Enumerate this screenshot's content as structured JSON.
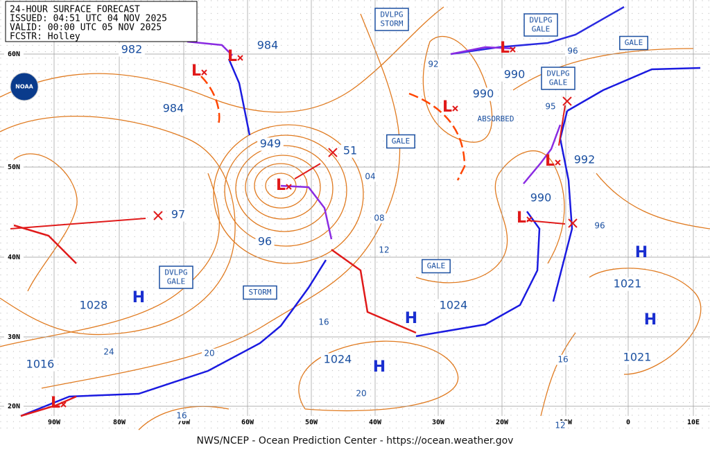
{
  "header": {
    "title": "24-HOUR SURFACE FORECAST",
    "issued": "ISSUED: 04:51 UTC 04 NOV 2025",
    "valid": "VALID:  00:00 UTC 05 NOV 2025",
    "forecaster": "FCSTR:  Holley"
  },
  "logo": "NOAA",
  "footer": "NWS/NCEP - Ocean Prediction Center - https://ocean.weather.gov",
  "latitude_labels": [
    "60N",
    "50N",
    "40N",
    "30N",
    "20N"
  ],
  "longitude_labels": [
    "90W",
    "80W",
    "70W",
    "60W",
    "50W",
    "40W",
    "30W",
    "20W",
    "10W",
    "0",
    "10E"
  ],
  "isobar_labels": [
    "982",
    "984",
    "984",
    "949",
    "51",
    "97",
    "96",
    "1028",
    "1016",
    "24",
    "20",
    "16",
    "1024",
    "1024",
    "20",
    "04",
    "08",
    "12",
    "92",
    "990",
    "990",
    "990",
    "95",
    "992",
    "96",
    "96",
    "1021",
    "1021",
    "16",
    "12",
    "16"
  ],
  "warnings": [
    [
      "DVLPG",
      "STORM"
    ],
    [
      "DVLPG",
      "GALE"
    ],
    [
      "GALE"
    ],
    [
      "DVLPG",
      "GALE"
    ],
    [
      "GALE"
    ],
    [
      "GALE"
    ],
    [
      "DVLPG",
      "GALE"
    ],
    [
      "STORM"
    ]
  ],
  "notes": [
    "ABSORBED"
  ],
  "highs": [
    "H",
    "H",
    "H",
    "H",
    "H"
  ],
  "lows": [
    "L",
    "L",
    "L",
    "L",
    "L",
    "L",
    "L",
    "L"
  ]
}
